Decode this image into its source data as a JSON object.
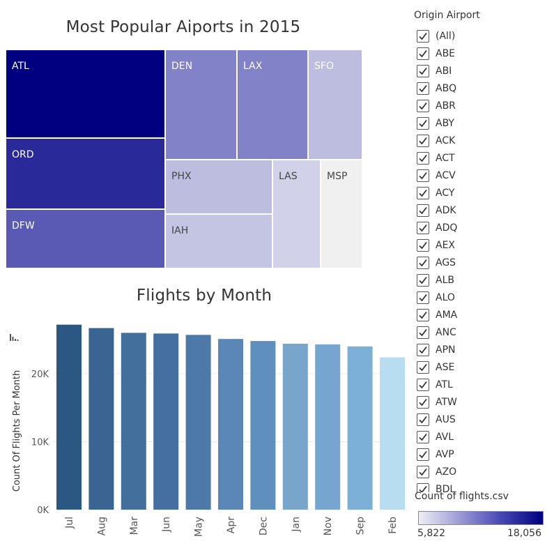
{
  "chart_data": [
    {
      "type": "treemap",
      "title": "Most Popular Aiports in 2015",
      "measure": "Count of flights.csv",
      "categories": [
        "ATL",
        "ORD",
        "DFW",
        "DEN",
        "LAX",
        "SFO",
        "PHX",
        "IAH",
        "LAS",
        "MSP"
      ],
      "values": [
        18056,
        14500,
        12300,
        10700,
        10600,
        7600,
        7400,
        7300,
        7000,
        5822
      ],
      "colors": [
        "#000080",
        "#29299a",
        "#5a5ab4",
        "#8282c8",
        "#8282c8",
        "#bdbde0",
        "#bdbde0",
        "#c4c4e3",
        "#d1d1e9",
        "#f0f0f0"
      ],
      "label_colors": [
        "#ffffff",
        "#ffffff",
        "#ffffff",
        "#ffffff",
        "#ffffff",
        "#ffffff",
        "#444444",
        "#444444",
        "#444444",
        "#444444"
      ]
    },
    {
      "type": "bar",
      "title": "Flights by Month",
      "xlabel": "",
      "ylabel": "Count Of Flights Per Month",
      "categories": [
        "Jul",
        "Aug",
        "Mar",
        "Jun",
        "May",
        "Apr",
        "Dec",
        "Jan",
        "Nov",
        "Sep",
        "Feb"
      ],
      "values": [
        27200,
        26700,
        26000,
        25900,
        25700,
        25100,
        24800,
        24400,
        24300,
        24000,
        22400
      ],
      "colors": [
        "#2b5783",
        "#3a6592",
        "#426f9c",
        "#456fa0",
        "#4c79a8",
        "#5a87b5",
        "#5f8fbc",
        "#78a5cc",
        "#76a6d0",
        "#7cb0d6",
        "#b8dcf0"
      ],
      "ylim": [
        0,
        28500
      ],
      "yticks": [
        0,
        10000,
        20000
      ],
      "ytick_labels": [
        "0K",
        "10K",
        "20K"
      ],
      "grid": true
    }
  ],
  "filter": {
    "title": "Origin Airport",
    "items": [
      "(All)",
      "ABE",
      "ABI",
      "ABQ",
      "ABR",
      "ABY",
      "ACK",
      "ACT",
      "ACV",
      "ACY",
      "ADK",
      "ADQ",
      "AEX",
      "AGS",
      "ALB",
      "ALO",
      "AMA",
      "ANC",
      "APN",
      "ASE",
      "ATL",
      "ATW",
      "AUS",
      "AVL",
      "AVP",
      "AZO",
      "BDL"
    ]
  },
  "legend": {
    "title": "Count of flights.csv",
    "min_label": "5,822",
    "max_label": "18,056"
  }
}
